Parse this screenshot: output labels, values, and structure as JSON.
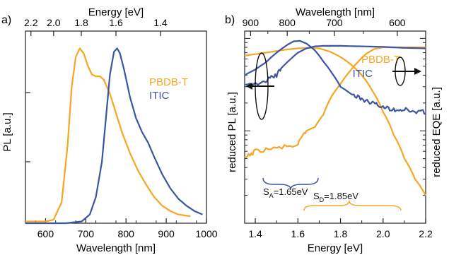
{
  "colors": {
    "pbdbt": "#f5a623",
    "itic": "#3b55a4",
    "frame": "#222222"
  },
  "chart_data": [
    {
      "panel_label": "a)",
      "type": "line",
      "xlabel": "Wavelength [nm]",
      "ylabel": "PL [a.u.]",
      "top_axis_label": "Energy [eV]",
      "xlim": [
        550,
        1000
      ],
      "ylim": [
        0,
        1.05
      ],
      "grid": false,
      "legend_position": "center-right",
      "x_ticks": [
        600,
        700,
        800,
        900,
        1000
      ],
      "top_ticks": [
        "2.2",
        "2.0",
        "1.8",
        "1.6",
        "1.4"
      ],
      "series": [
        {
          "name": "PBDB-T",
          "x": [
            550,
            600,
            620,
            640,
            655,
            665,
            675,
            685,
            695,
            705,
            715,
            725,
            735,
            745,
            760,
            775,
            790,
            810,
            830,
            850,
            870,
            890,
            910,
            930,
            960
          ],
          "y": [
            0.01,
            0.01,
            0.02,
            0.12,
            0.45,
            0.78,
            0.95,
            1.0,
            0.97,
            0.9,
            0.85,
            0.84,
            0.84,
            0.82,
            0.74,
            0.63,
            0.52,
            0.4,
            0.3,
            0.22,
            0.15,
            0.1,
            0.07,
            0.05,
            0.04
          ]
        },
        {
          "name": "ITIC",
          "x": [
            550,
            650,
            690,
            710,
            725,
            740,
            750,
            760,
            770,
            778,
            785,
            795,
            810,
            825,
            840,
            855,
            870,
            890,
            910,
            930,
            950,
            970,
            990
          ],
          "y": [
            0.0,
            0.0,
            0.01,
            0.05,
            0.15,
            0.35,
            0.6,
            0.85,
            0.98,
            1.0,
            0.97,
            0.88,
            0.72,
            0.6,
            0.52,
            0.46,
            0.38,
            0.28,
            0.2,
            0.14,
            0.1,
            0.07,
            0.05
          ]
        }
      ]
    },
    {
      "panel_label": "b)",
      "type": "line",
      "xlabel": "Energy [eV]",
      "ylabel_left": "reduced PL [a.u.]",
      "ylabel_right": "reduced EQE [a.u.]",
      "top_axis_label": "Wavelength [nm]",
      "xlim": [
        1.35,
        2.2
      ],
      "y_scale": "log",
      "grid": false,
      "x_ticks": [
        "1.4",
        "1.6",
        "1.8",
        "2.0",
        "2.2"
      ],
      "top_ticks": [
        "900",
        "800",
        "700",
        "600"
      ],
      "legend_position": "top-right",
      "annotations": [
        {
          "text_main": "S",
          "text_sub": "A",
          "text_value": "=1.65eV",
          "from": 1.52,
          "to": 1.78
        },
        {
          "text_main": "S",
          "text_sub": "D",
          "text_value": "=1.85eV",
          "from": 1.64,
          "to": 2.07
        }
      ],
      "series": [
        {
          "name": "PBDB-T",
          "kind": "reduced PL",
          "x": [
            1.35,
            1.45,
            1.55,
            1.6,
            1.65,
            1.7,
            1.75,
            1.8,
            1.85,
            1.9,
            1.95,
            2.0,
            2.05,
            2.1,
            2.15,
            2.2
          ],
          "y": [
            0.65,
            0.7,
            0.76,
            0.78,
            0.79,
            0.78,
            0.72,
            0.63,
            0.52,
            0.4,
            0.27,
            0.16,
            0.09,
            0.05,
            0.03,
            0.02
          ]
        },
        {
          "name": "PBDB-T",
          "kind": "reduced EQE",
          "x": [
            1.35,
            1.4,
            1.5,
            1.6,
            1.64,
            1.68,
            1.72,
            1.76,
            1.8,
            1.84,
            1.88,
            1.92,
            1.96,
            2.0,
            2.05,
            2.1,
            2.2
          ],
          "y": [
            0.05,
            0.06,
            0.065,
            0.07,
            0.1,
            0.11,
            0.15,
            0.24,
            0.32,
            0.43,
            0.55,
            0.68,
            0.77,
            0.8,
            0.8,
            0.8,
            0.8
          ]
        },
        {
          "name": "ITIC",
          "kind": "reduced PL",
          "x": [
            1.35,
            1.4,
            1.45,
            1.5,
            1.55,
            1.58,
            1.61,
            1.64,
            1.68,
            1.72,
            1.76,
            1.8,
            1.85,
            1.9,
            1.95,
            2.0,
            2.05,
            2.1,
            2.15,
            2.2
          ],
          "y": [
            0.4,
            0.46,
            0.55,
            0.7,
            0.85,
            0.93,
            0.94,
            0.88,
            0.74,
            0.56,
            0.42,
            0.3,
            0.25,
            0.22,
            0.2,
            0.18,
            0.17,
            0.17,
            0.16,
            0.16
          ]
        },
        {
          "name": "ITIC",
          "kind": "reduced EQE",
          "x": [
            1.35,
            1.45,
            1.5,
            1.52,
            1.56,
            1.6,
            1.64,
            1.68,
            1.72,
            1.8,
            1.9,
            2.0,
            2.1,
            2.2
          ],
          "y": [
            0.3,
            0.35,
            0.4,
            0.47,
            0.58,
            0.7,
            0.78,
            0.82,
            0.83,
            0.83,
            0.82,
            0.81,
            0.79,
            0.78
          ]
        }
      ]
    }
  ]
}
